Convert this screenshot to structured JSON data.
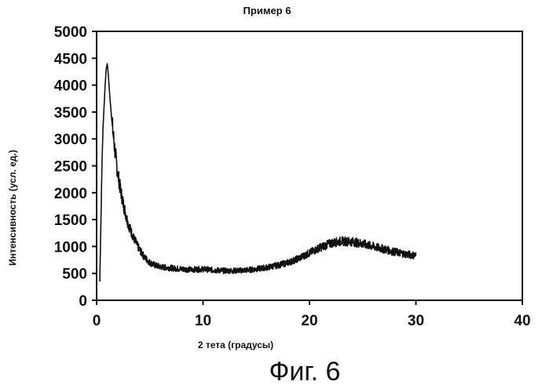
{
  "caption": "Фиг. 6",
  "colors": {
    "line": "#111111",
    "frame": "#111111",
    "background": "#ffffff"
  },
  "chart_data": {
    "type": "line",
    "title": "Пример 6",
    "xlabel": "2 тета (градусы)",
    "ylabel": "Интенсивность (усл. ед.)",
    "xlim": [
      0,
      40
    ],
    "ylim": [
      0,
      5000
    ],
    "x_ticks": [
      "0",
      "10",
      "20",
      "30",
      "40"
    ],
    "y_ticks": [
      "0",
      "500",
      "1000",
      "1500",
      "2000",
      "2500",
      "3000",
      "3500",
      "4000",
      "4500",
      "5000"
    ],
    "grid": false,
    "legend": "none",
    "series": [
      {
        "x": [
          0.3,
          0.4,
          0.5,
          0.6,
          0.7,
          0.8,
          0.9,
          1.0,
          1.1,
          1.2,
          1.4,
          1.6,
          1.8,
          2.0,
          2.2,
          2.5,
          2.8,
          3.0,
          3.5,
          4.0,
          4.5,
          5.0,
          5.5,
          6.0,
          7.0,
          8.0,
          9.0,
          10.0,
          11.0,
          12.0,
          13.0,
          14.0,
          15.0,
          16.0,
          17.0,
          18.0,
          19.0,
          20.0,
          21.0,
          22.0,
          23.0,
          24.0,
          25.0,
          26.0,
          27.0,
          28.0,
          29.0,
          30.0
        ],
        "y": [
          350,
          1400,
          2500,
          3200,
          3600,
          4000,
          4300,
          4400,
          4200,
          3900,
          3400,
          3000,
          2650,
          2350,
          2100,
          1800,
          1550,
          1400,
          1150,
          950,
          800,
          700,
          650,
          620,
          600,
          580,
          570,
          580,
          560,
          550,
          550,
          560,
          580,
          610,
          650,
          700,
          780,
          880,
          980,
          1060,
          1100,
          1090,
          1050,
          1000,
          950,
          900,
          860,
          830
        ]
      }
    ]
  }
}
